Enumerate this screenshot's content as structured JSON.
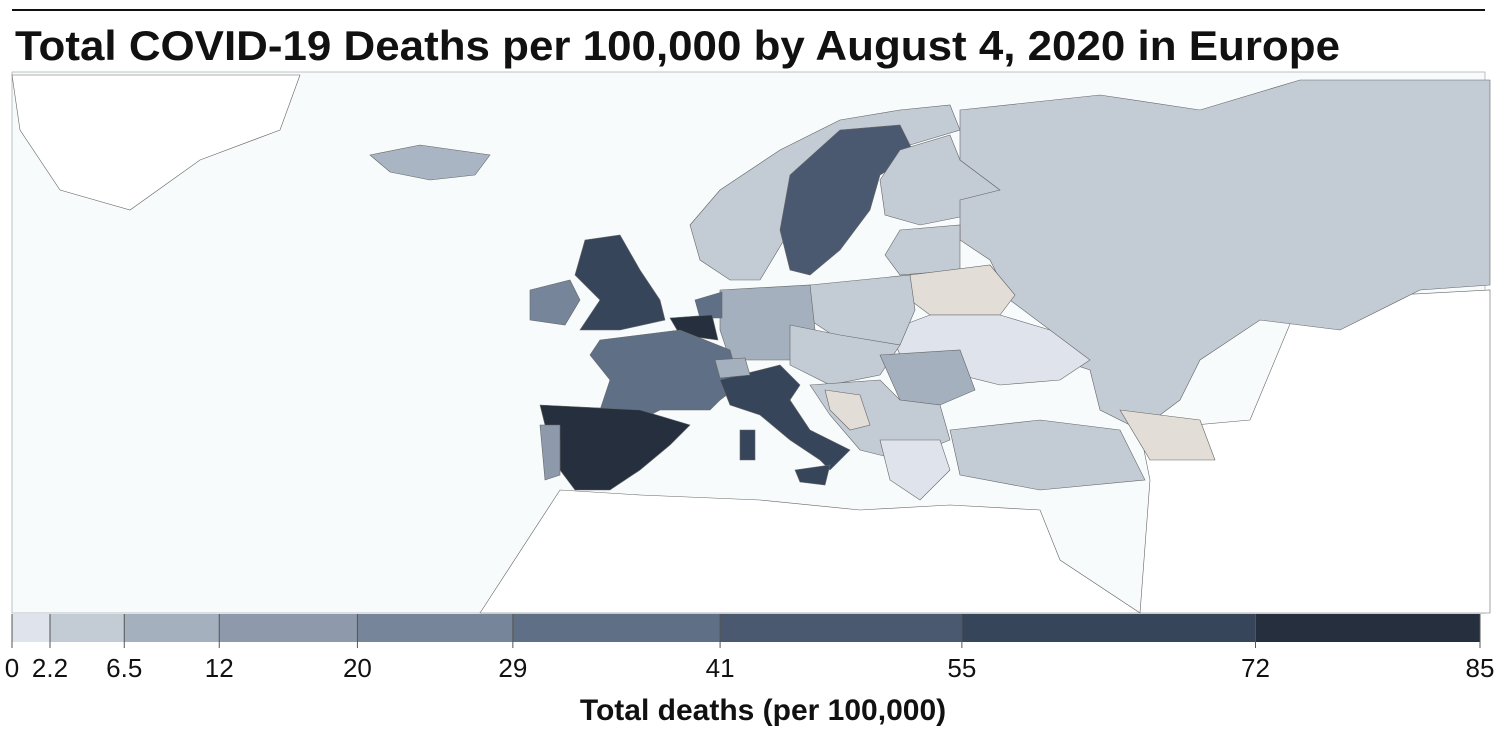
{
  "header": {
    "title": "Total COVID-19 Deaths per 100,000 by August 4, 2020 in Europe"
  },
  "legend": {
    "title": "Total deaths (per 100,000)",
    "breaks": [
      0,
      2.2,
      6.5,
      12,
      20,
      29,
      41,
      55,
      72,
      85
    ],
    "colors": [
      "#dfe3ec",
      "#c3cbd5",
      "#a5b0bf",
      "#8e9aab",
      "#76859a",
      "#5f6f86",
      "#4a5970",
      "#37455a",
      "#252f3e"
    ]
  }
}
